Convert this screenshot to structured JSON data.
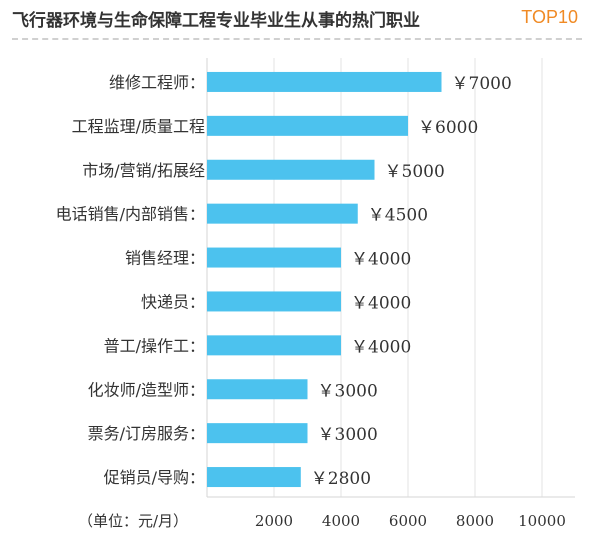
{
  "header": {
    "title": "飞行器环境与生命保障工程专业毕业生从事的热门职业",
    "badge": "TOP10"
  },
  "chart_data": {
    "type": "bar",
    "orientation": "horizontal",
    "categories": [
      "维修工程师：",
      "工程监理/质量工程",
      "市场/营销/拓展经",
      "电话销售/内部销售：",
      "销售经理：",
      "快递员：",
      "普工/操作工：",
      "化妆师/造型师：",
      "票务/订房服务：",
      "促销员/导购："
    ],
    "values": [
      7000,
      6000,
      5000,
      4500,
      4000,
      4000,
      4000,
      3000,
      3000,
      2800
    ],
    "value_labels": [
      "￥7000",
      "￥6000",
      "￥5000",
      "￥4500",
      "￥4000",
      "￥4000",
      "￥4000",
      "￥3000",
      "￥3000",
      "￥2800"
    ],
    "x_ticks": [
      "2000",
      "4000",
      "6000",
      "8000",
      "10000"
    ],
    "xlabel": "（单位：元/月）",
    "xlim": [
      0,
      10000
    ],
    "grid": true,
    "bar_color": "#4cc2ee"
  }
}
